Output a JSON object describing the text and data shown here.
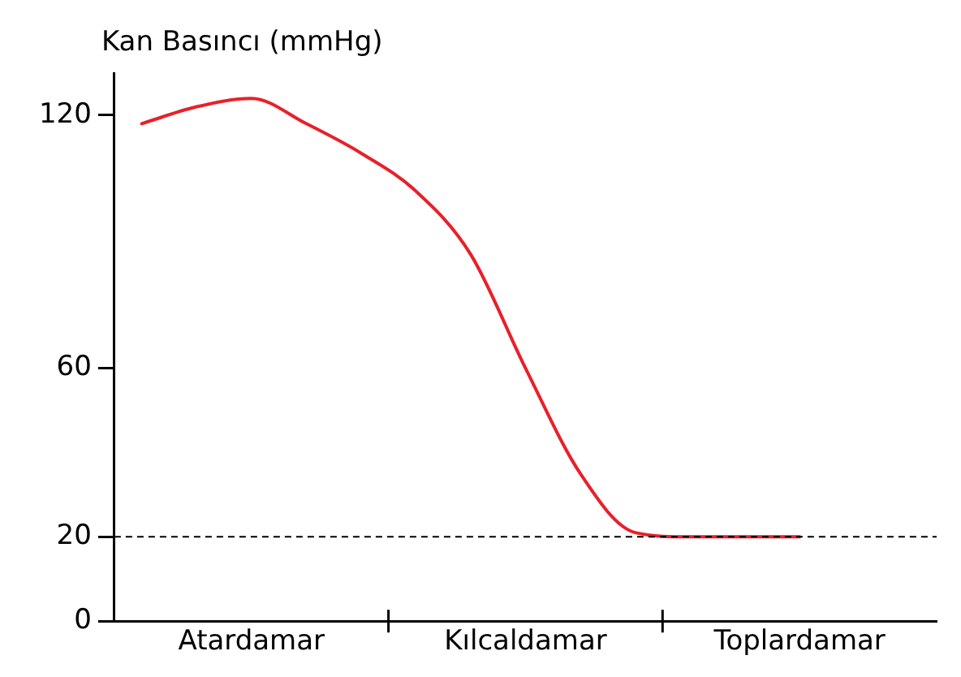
{
  "chart_data": {
    "type": "line",
    "ylabel": "Kan Basıncı (mmHg)",
    "categories": [
      null,
      null,
      "Atardamar",
      null,
      null,
      null,
      null,
      "Kılcaldamar",
      null,
      null,
      null,
      null,
      "Toplardamar",
      null,
      null
    ],
    "series": [
      {
        "color": "#e8202a",
        "values": [
          118,
          122,
          124,
          118,
          111,
          102,
          87,
          60,
          35,
          21,
          20,
          20,
          20,
          null,
          null
        ]
      }
    ],
    "ylim": [
      0,
      130
    ],
    "yticks": [
      0,
      20,
      60,
      120
    ],
    "ref_lines": [
      {
        "axis": "y",
        "value": 20,
        "color": "#000000",
        "line_style": "dashed"
      }
    ],
    "grid": false,
    "legend": false,
    "marker": "none",
    "line_style": "solid"
  }
}
